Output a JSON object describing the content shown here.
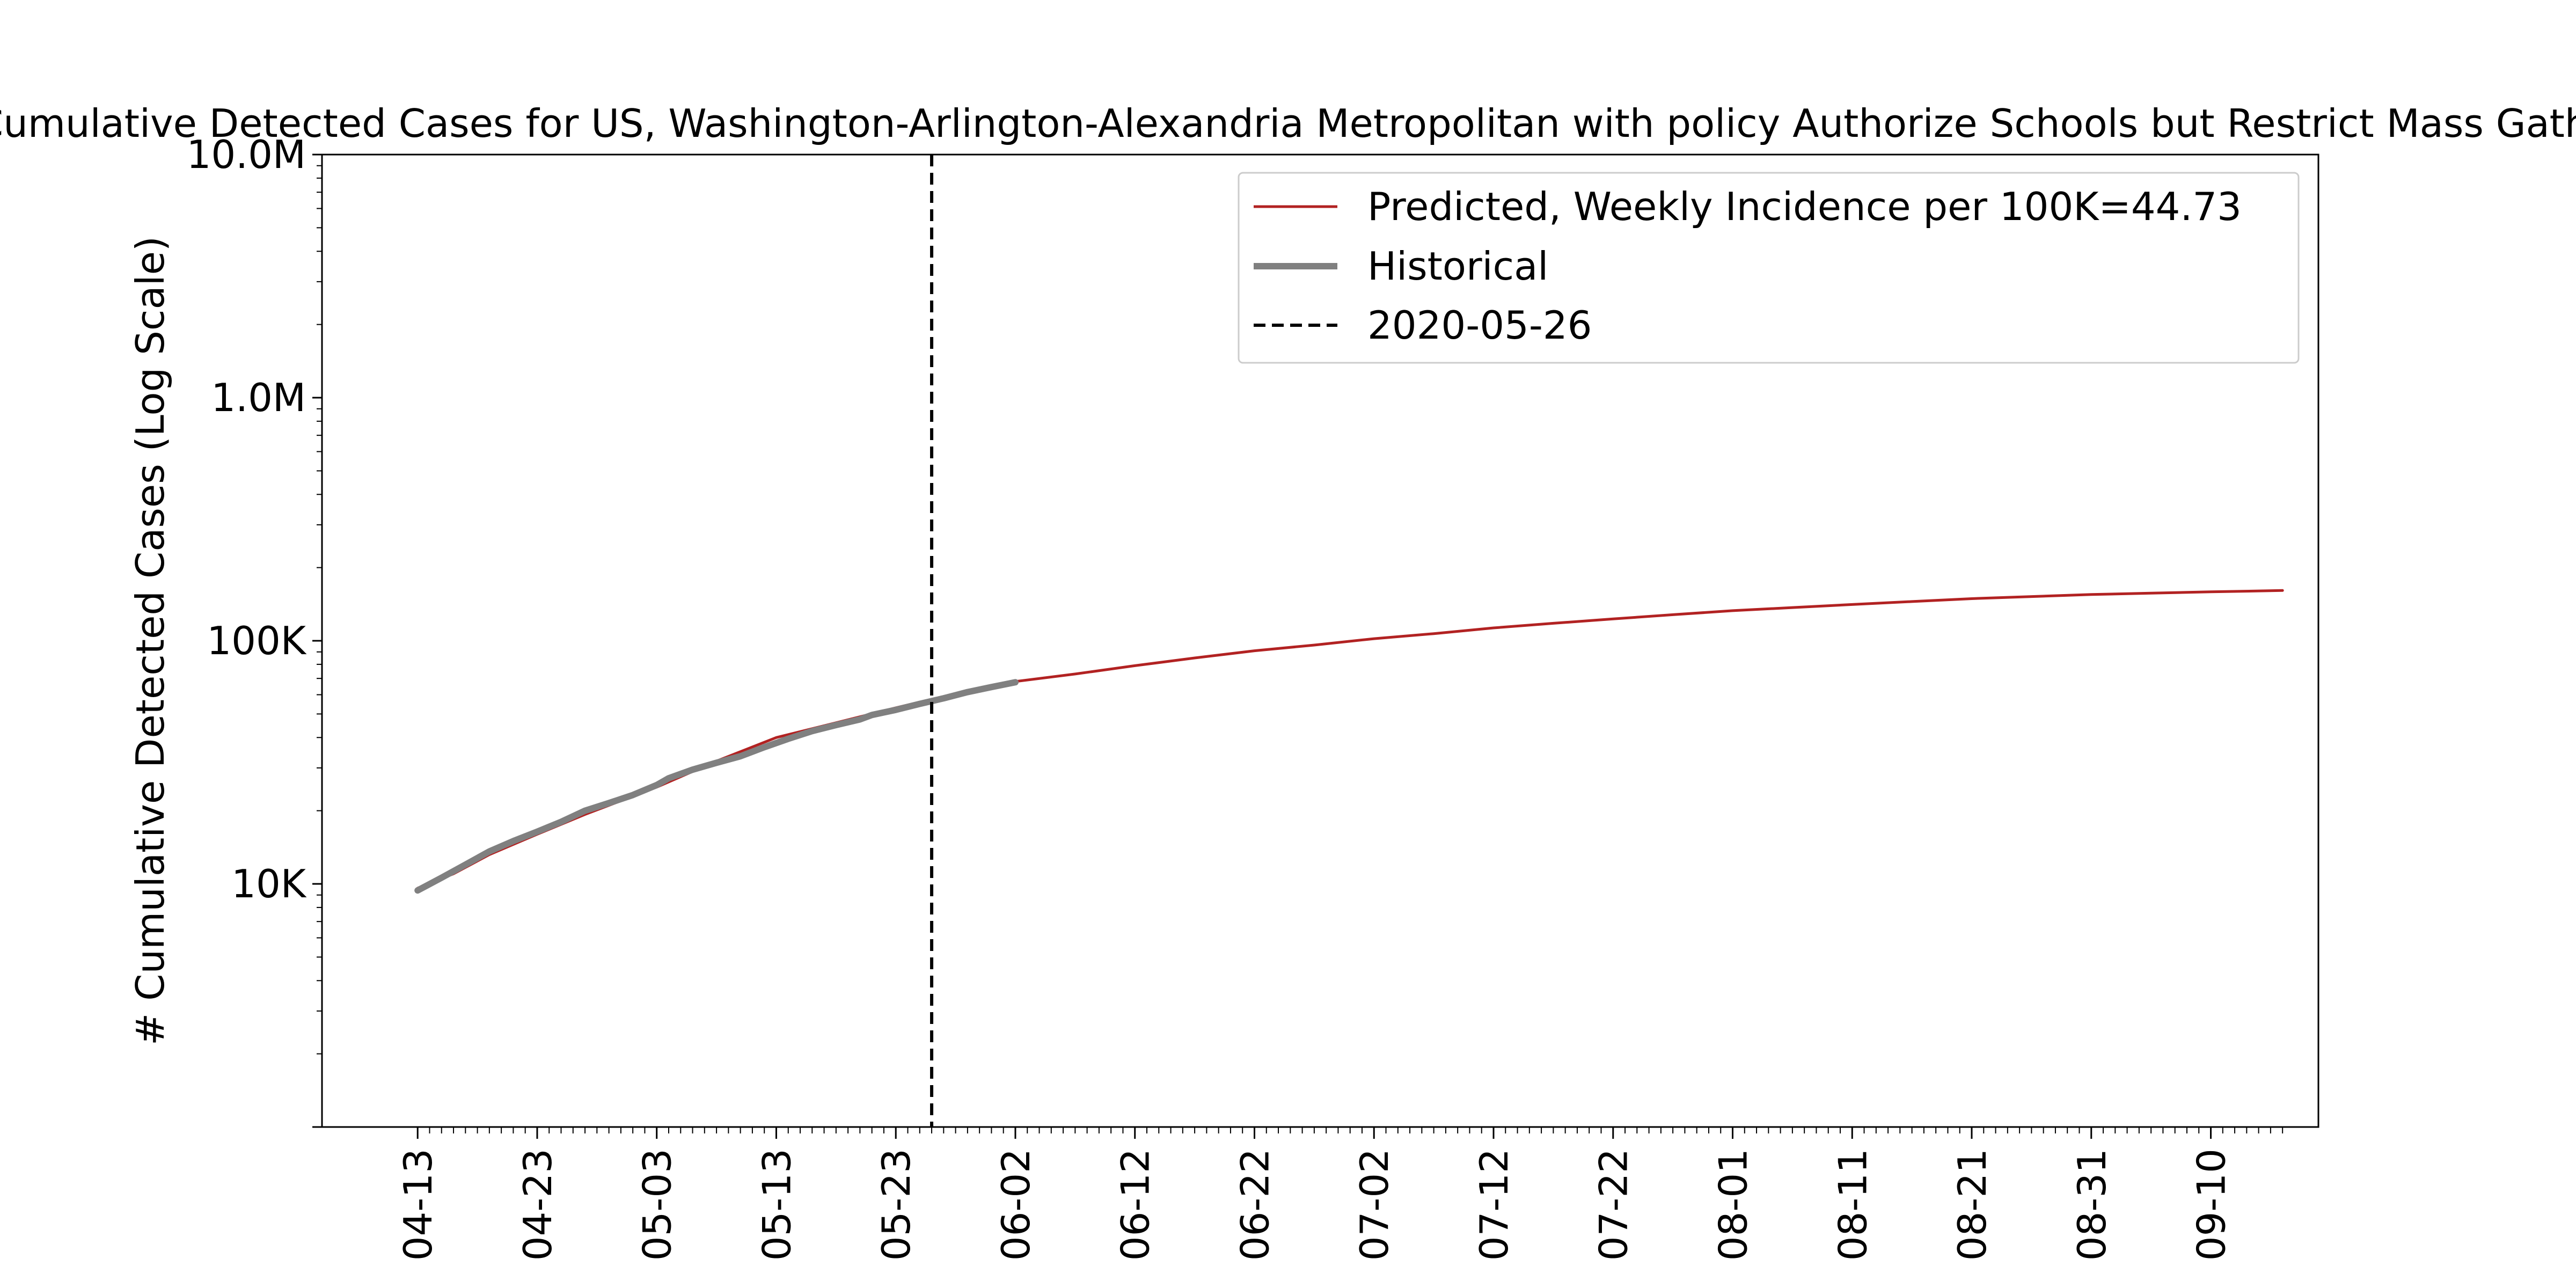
{
  "chart_data": {
    "type": "line",
    "title": "# Cumulative Detected Cases for US, Washington-Arlington-Alexandria Metropolitan with policy Authorize Schools but Restrict Mass Gatherings",
    "xlabel": "",
    "ylabel": "# Cumulative Detected Cases (Log Scale)",
    "y_scale": "log",
    "ylim": [
      1000,
      10000000
    ],
    "xlim": [
      "2020-04-05",
      "2020-09-19"
    ],
    "y_ticks": [
      {
        "value": 10000,
        "label": "10K"
      },
      {
        "value": 100000,
        "label": "100K"
      },
      {
        "value": 1000000,
        "label": "1.0M"
      },
      {
        "value": 10000000,
        "label": "10.0M"
      }
    ],
    "x_ticks": [
      {
        "date": "2020-04-13",
        "label": "04-13"
      },
      {
        "date": "2020-04-23",
        "label": "04-23"
      },
      {
        "date": "2020-05-03",
        "label": "05-03"
      },
      {
        "date": "2020-05-13",
        "label": "05-13"
      },
      {
        "date": "2020-05-23",
        "label": "05-23"
      },
      {
        "date": "2020-06-02",
        "label": "06-02"
      },
      {
        "date": "2020-06-12",
        "label": "06-12"
      },
      {
        "date": "2020-06-22",
        "label": "06-22"
      },
      {
        "date": "2020-07-02",
        "label": "07-02"
      },
      {
        "date": "2020-07-12",
        "label": "07-12"
      },
      {
        "date": "2020-07-22",
        "label": "07-22"
      },
      {
        "date": "2020-08-01",
        "label": "08-01"
      },
      {
        "date": "2020-08-11",
        "label": "08-11"
      },
      {
        "date": "2020-08-21",
        "label": "08-21"
      },
      {
        "date": "2020-08-31",
        "label": "08-31"
      },
      {
        "date": "2020-09-10",
        "label": "09-10"
      }
    ],
    "minor_x_ticks_start": "2020-04-13",
    "minor_x_ticks_end": "2020-09-16",
    "grid": false,
    "legend_position": "top-right",
    "series": [
      {
        "name": "Predicted, Weekly Incidence per 100K=44.73",
        "color": "#b22222",
        "style": "solid",
        "points": [
          [
            "2020-04-13",
            9600
          ],
          [
            "2020-04-16",
            11000
          ],
          [
            "2020-04-19",
            13200
          ],
          [
            "2020-04-23",
            16000
          ],
          [
            "2020-04-27",
            19300
          ],
          [
            "2020-05-03",
            25000
          ],
          [
            "2020-05-08",
            32000
          ],
          [
            "2020-05-13",
            40000
          ],
          [
            "2020-05-18",
            46000
          ],
          [
            "2020-05-23",
            53000
          ],
          [
            "2020-05-27",
            59000
          ],
          [
            "2020-06-02",
            68000
          ],
          [
            "2020-06-07",
            73000
          ],
          [
            "2020-06-12",
            79000
          ],
          [
            "2020-06-17",
            85000
          ],
          [
            "2020-06-22",
            91000
          ],
          [
            "2020-06-27",
            96000
          ],
          [
            "2020-07-02",
            102000
          ],
          [
            "2020-07-07",
            107000
          ],
          [
            "2020-07-12",
            113000
          ],
          [
            "2020-07-17",
            118000
          ],
          [
            "2020-07-22",
            123000
          ],
          [
            "2020-07-27",
            128000
          ],
          [
            "2020-08-01",
            133000
          ],
          [
            "2020-08-06",
            137000
          ],
          [
            "2020-08-11",
            141000
          ],
          [
            "2020-08-16",
            145000
          ],
          [
            "2020-08-21",
            149000
          ],
          [
            "2020-08-26",
            152000
          ],
          [
            "2020-08-31",
            155000
          ],
          [
            "2020-09-05",
            157000
          ],
          [
            "2020-09-10",
            159000
          ],
          [
            "2020-09-16",
            161000
          ]
        ]
      },
      {
        "name": "Historical",
        "color": "#808080",
        "style": "solid",
        "points": [
          [
            "2020-04-13",
            9400
          ],
          [
            "2020-04-15",
            10600
          ],
          [
            "2020-04-17",
            12000
          ],
          [
            "2020-04-19",
            13600
          ],
          [
            "2020-04-21",
            15000
          ],
          [
            "2020-04-23",
            16400
          ],
          [
            "2020-04-25",
            18000
          ],
          [
            "2020-04-27",
            20000
          ],
          [
            "2020-04-29",
            21500
          ],
          [
            "2020-05-01",
            23200
          ],
          [
            "2020-05-03",
            25500
          ],
          [
            "2020-05-04",
            27200
          ],
          [
            "2020-05-06",
            29500
          ],
          [
            "2020-05-08",
            31500
          ],
          [
            "2020-05-10",
            33500
          ],
          [
            "2020-05-12",
            36500
          ],
          [
            "2020-05-14",
            39500
          ],
          [
            "2020-05-16",
            42500
          ],
          [
            "2020-05-18",
            45000
          ],
          [
            "2020-05-20",
            47500
          ],
          [
            "2020-05-21",
            49500
          ],
          [
            "2020-05-23",
            52000
          ],
          [
            "2020-05-25",
            55000
          ],
          [
            "2020-05-27",
            58000
          ],
          [
            "2020-05-29",
            61500
          ],
          [
            "2020-05-31",
            64500
          ],
          [
            "2020-06-02",
            67500
          ]
        ]
      }
    ],
    "vertical_lines": [
      {
        "name": "2020-05-26",
        "x": "2020-05-26",
        "color": "#000000",
        "style": "dashed"
      }
    ]
  }
}
